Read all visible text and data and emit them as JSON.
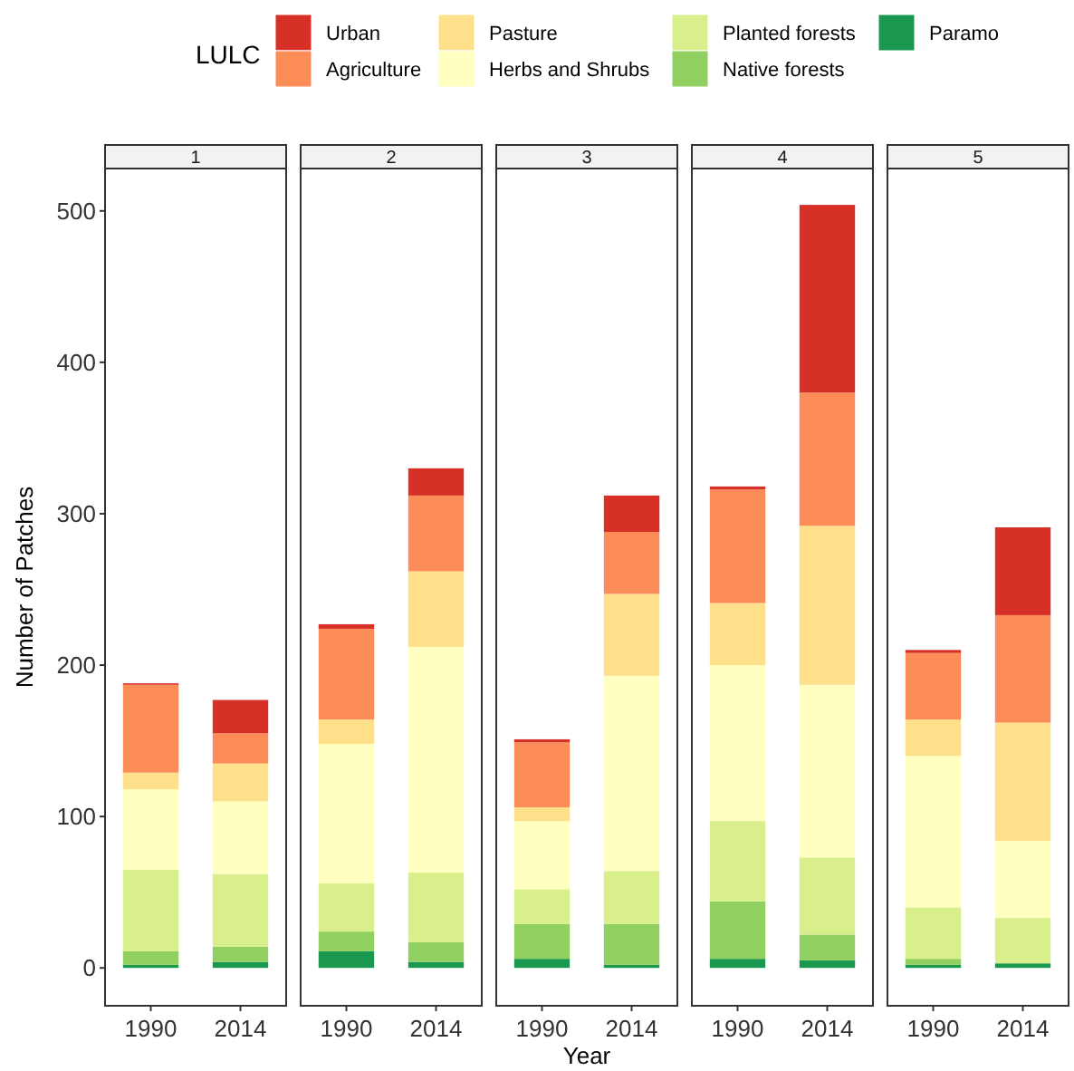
{
  "chart_data": [
    {
      "type": "bar",
      "stacked": true,
      "title": "1",
      "ylabel": "Number of Patches",
      "legend": "top",
      "legend_title": "LULC",
      "categories": [
        "1990",
        "2014"
      ],
      "ylim": [
        -25,
        528
      ],
      "yticks": [
        0,
        100,
        200,
        300,
        400,
        500
      ],
      "series": [
        {
          "name": "Paramo",
          "color": "#1a9850",
          "values": [
            2,
            4
          ]
        },
        {
          "name": "Native forests",
          "color": "#91cf60",
          "values": [
            9,
            10
          ]
        },
        {
          "name": "Planted forests",
          "color": "#d9ef8b",
          "values": [
            54,
            48
          ]
        },
        {
          "name": "Herbs and Shrubs",
          "color": "#ffffbf",
          "values": [
            53,
            48
          ]
        },
        {
          "name": "Pasture",
          "color": "#fee08b",
          "values": [
            11,
            25
          ]
        },
        {
          "name": "Agriculture",
          "color": "#fc8d59",
          "values": [
            58,
            20
          ]
        },
        {
          "name": "Urban",
          "color": "#d73027",
          "values": [
            1,
            22
          ]
        }
      ]
    },
    {
      "type": "bar",
      "stacked": true,
      "title": "2",
      "tick_labels": "x",
      "categories": [
        "1990",
        "2014"
      ],
      "ylim": [
        -25,
        528
      ],
      "yticks": [
        0,
        100,
        200,
        300,
        400,
        500
      ],
      "series": [
        {
          "color": "#1a9850",
          "values": [
            11,
            4
          ]
        },
        {
          "color": "#91cf60",
          "values": [
            13,
            13
          ]
        },
        {
          "color": "#d9ef8b",
          "values": [
            32,
            46
          ]
        },
        {
          "color": "#ffffbf",
          "values": [
            92,
            149
          ]
        },
        {
          "color": "#fee08b",
          "values": [
            16,
            50
          ]
        },
        {
          "color": "#fc8d59",
          "values": [
            60,
            50
          ]
        },
        {
          "color": "#d73027",
          "values": [
            3,
            18
          ]
        }
      ]
    },
    {
      "type": "bar",
      "stacked": true,
      "title": "3",
      "xlabel": "Year",
      "tick_labels": "x",
      "categories": [
        "1990",
        "2014"
      ],
      "ylim": [
        -25,
        528
      ],
      "yticks": [
        0,
        100,
        200,
        300,
        400,
        500
      ],
      "series": [
        {
          "color": "#1a9850",
          "values": [
            6,
            2
          ]
        },
        {
          "color": "#91cf60",
          "values": [
            23,
            27
          ]
        },
        {
          "color": "#d9ef8b",
          "values": [
            23,
            35
          ]
        },
        {
          "color": "#ffffbf",
          "values": [
            45,
            129
          ]
        },
        {
          "color": "#fee08b",
          "values": [
            9,
            54
          ]
        },
        {
          "color": "#fc8d59",
          "values": [
            43,
            41
          ]
        },
        {
          "color": "#d73027",
          "values": [
            2,
            24
          ]
        }
      ]
    },
    {
      "type": "bar",
      "stacked": true,
      "title": "4",
      "tick_labels": "x",
      "categories": [
        "1990",
        "2014"
      ],
      "ylim": [
        -25,
        528
      ],
      "yticks": [
        0,
        100,
        200,
        300,
        400,
        500
      ],
      "series": [
        {
          "color": "#1a9850",
          "values": [
            6,
            5
          ]
        },
        {
          "color": "#91cf60",
          "values": [
            38,
            17
          ]
        },
        {
          "color": "#d9ef8b",
          "values": [
            53,
            51
          ]
        },
        {
          "color": "#ffffbf",
          "values": [
            103,
            114
          ]
        },
        {
          "color": "#fee08b",
          "values": [
            41,
            105
          ]
        },
        {
          "color": "#fc8d59",
          "values": [
            75,
            88
          ]
        },
        {
          "color": "#d73027",
          "values": [
            2,
            124
          ]
        }
      ]
    },
    {
      "type": "bar",
      "stacked": true,
      "title": "5",
      "tick_labels": "x",
      "categories": [
        "1990",
        "2014"
      ],
      "ylim": [
        -25,
        528
      ],
      "yticks": [
        0,
        100,
        200,
        300,
        400,
        500
      ],
      "series": [
        {
          "color": "#1a9850",
          "values": [
            2,
            3
          ]
        },
        {
          "color": "#91cf60",
          "values": [
            4,
            0
          ]
        },
        {
          "color": "#d9ef8b",
          "values": [
            34,
            30
          ]
        },
        {
          "color": "#ffffbf",
          "values": [
            100,
            51
          ]
        },
        {
          "color": "#fee08b",
          "values": [
            24,
            78
          ]
        },
        {
          "color": "#fc8d59",
          "values": [
            44,
            71
          ]
        },
        {
          "color": "#d73027",
          "values": [
            2,
            58
          ]
        }
      ]
    }
  ]
}
